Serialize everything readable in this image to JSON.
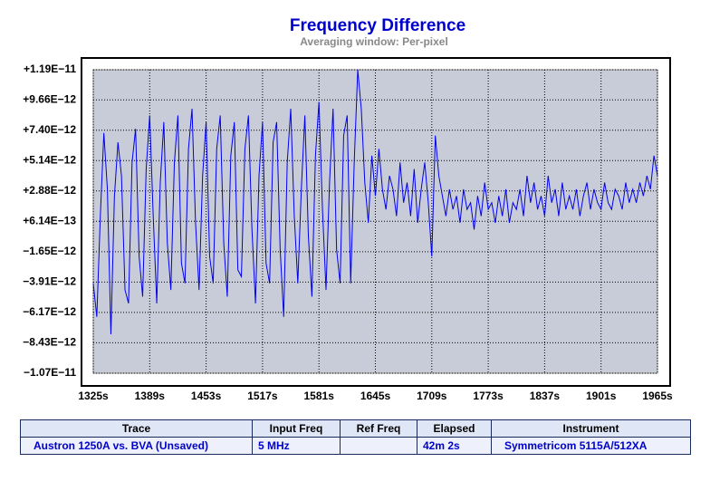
{
  "chart_data": {
    "type": "line",
    "title": "Frequency Difference",
    "subtitle": "Averaging window: Per-pixel",
    "x": [
      1325,
      1329,
      1333,
      1337,
      1341,
      1345,
      1349,
      1353,
      1357,
      1361,
      1365,
      1369,
      1373,
      1377,
      1381,
      1385,
      1389,
      1393,
      1397,
      1401,
      1405,
      1409,
      1413,
      1417,
      1421,
      1425,
      1429,
      1433,
      1437,
      1441,
      1445,
      1449,
      1453,
      1457,
      1461,
      1465,
      1469,
      1473,
      1477,
      1481,
      1485,
      1489,
      1493,
      1497,
      1501,
      1505,
      1509,
      1513,
      1517,
      1521,
      1525,
      1529,
      1533,
      1537,
      1541,
      1545,
      1549,
      1553,
      1557,
      1561,
      1565,
      1569,
      1573,
      1577,
      1581,
      1585,
      1589,
      1593,
      1597,
      1601,
      1605,
      1609,
      1613,
      1617,
      1621,
      1625,
      1629,
      1633,
      1637,
      1641,
      1645,
      1649,
      1653,
      1657,
      1661,
      1665,
      1669,
      1673,
      1677,
      1681,
      1685,
      1689,
      1693,
      1697,
      1701,
      1705,
      1709,
      1713,
      1717,
      1721,
      1725,
      1729,
      1733,
      1737,
      1741,
      1745,
      1749,
      1753,
      1757,
      1761,
      1765,
      1769,
      1773,
      1777,
      1781,
      1785,
      1789,
      1793,
      1797,
      1801,
      1805,
      1809,
      1813,
      1817,
      1821,
      1825,
      1829,
      1833,
      1837,
      1841,
      1845,
      1849,
      1853,
      1857,
      1861,
      1865,
      1869,
      1873,
      1877,
      1881,
      1885,
      1889,
      1893,
      1897,
      1901,
      1905,
      1909,
      1913,
      1917,
      1921,
      1925,
      1929,
      1933,
      1937,
      1941,
      1945,
      1949,
      1953,
      1957,
      1961,
      1965
    ],
    "series": [
      {
        "name": "Austron 1250A vs. BVA (Unsaved)",
        "color": "#0000ee",
        "values": [
          -4e-12,
          -6.5e-12,
          1e-12,
          7.2e-12,
          3e-12,
          -7.8e-12,
          2.5e-12,
          6.5e-12,
          4e-12,
          -4.5e-12,
          -5.5e-12,
          5e-12,
          7.5e-12,
          -2e-12,
          -5e-12,
          4.5e-12,
          8.5e-12,
          1e-12,
          -5.5e-12,
          3.5e-12,
          8e-12,
          -1e-12,
          -4.5e-12,
          5e-12,
          8.5e-12,
          -2.5e-12,
          -4e-12,
          6e-12,
          9e-12,
          5e-13,
          -4.5e-12,
          4e-12,
          8e-12,
          -2e-12,
          -4e-12,
          6e-12,
          8.5e-12,
          -1e-12,
          -5e-12,
          5.5e-12,
          8e-12,
          -3e-12,
          -3.5e-12,
          6e-12,
          8.5e-12,
          0,
          -5.5e-12,
          4e-12,
          8e-12,
          -2.5e-12,
          -4e-12,
          6.5e-12,
          8e-12,
          -1.5e-12,
          -6.5e-12,
          5e-12,
          9e-12,
          1e-12,
          -4e-12,
          3e-12,
          8.5e-12,
          -5e-13,
          -5e-12,
          5.5e-12,
          9.5e-12,
          1.5e-12,
          -4.5e-12,
          3.5e-12,
          9e-12,
          -1.5e-12,
          -4e-12,
          7e-12,
          8.5e-12,
          -4e-12,
          5e-12,
          1.19e-11,
          9e-12,
          3.5e-12,
          5e-13,
          5.5e-12,
          2.5e-12,
          6e-12,
          3e-12,
          1.5e-12,
          4e-12,
          3e-12,
          1e-12,
          5e-12,
          2e-12,
          3.5e-12,
          1e-12,
          4.5e-12,
          5e-13,
          3e-12,
          5e-12,
          2e-12,
          -2e-12,
          7e-12,
          4e-12,
          2.5e-12,
          1e-12,
          3e-12,
          1.5e-12,
          2.5e-12,
          5e-13,
          3e-12,
          1.5e-12,
          2e-12,
          0,
          2.5e-12,
          1e-12,
          3.5e-12,
          1.5e-12,
          2e-12,
          5e-13,
          2.5e-12,
          1e-12,
          3e-12,
          5e-13,
          2e-12,
          1.5e-12,
          3e-12,
          1e-12,
          4e-12,
          2e-12,
          3.5e-12,
          1.5e-12,
          2.5e-12,
          1e-12,
          4e-12,
          2e-12,
          3e-12,
          1e-12,
          3.5e-12,
          1.5e-12,
          2.5e-12,
          1.5e-12,
          3e-12,
          1e-12,
          2.5e-12,
          3.5e-12,
          1.5e-12,
          3e-12,
          2e-12,
          1.5e-12,
          3.5e-12,
          2e-12,
          1.5e-12,
          3e-12,
          2.5e-12,
          1.5e-12,
          3.5e-12,
          2e-12,
          3e-12,
          2e-12,
          3.5e-12,
          2.5e-12,
          4e-12,
          3e-12,
          5.5e-12,
          4e-12
        ]
      }
    ],
    "xlim": [
      1325,
      1965
    ],
    "xticks": [
      {
        "value": 1325,
        "label": "1325s"
      },
      {
        "value": 1389,
        "label": "1389s"
      },
      {
        "value": 1453,
        "label": "1453s"
      },
      {
        "value": 1517,
        "label": "1517s"
      },
      {
        "value": 1581,
        "label": "1581s"
      },
      {
        "value": 1645,
        "label": "1645s"
      },
      {
        "value": 1709,
        "label": "1709s"
      },
      {
        "value": 1773,
        "label": "1773s"
      },
      {
        "value": 1837,
        "label": "1837s"
      },
      {
        "value": 1901,
        "label": "1901s"
      },
      {
        "value": 1965,
        "label": "1965s"
      }
    ],
    "ylim": [
      -1.07e-11,
      1.19e-11
    ],
    "yticks": [
      {
        "value": 1.19e-11,
        "label": "+1.19E−11"
      },
      {
        "value": 9.66e-12,
        "label": "+9.66E−12"
      },
      {
        "value": 7.4e-12,
        "label": "+7.40E−12"
      },
      {
        "value": 5.14e-12,
        "label": "+5.14E−12"
      },
      {
        "value": 2.88e-12,
        "label": "+2.88E−12"
      },
      {
        "value": 6.14e-13,
        "label": "+6.14E−13"
      },
      {
        "value": -1.65e-12,
        "label": "−1.65E−12"
      },
      {
        "value": -3.91e-12,
        "label": "−3.91E−12"
      },
      {
        "value": -6.17e-12,
        "label": "−6.17E−12"
      },
      {
        "value": -8.43e-12,
        "label": "−8.43E−12"
      },
      {
        "value": -1.07e-11,
        "label": "−1.07E−11"
      }
    ],
    "grid": true
  },
  "table": {
    "headers": [
      "Trace",
      "Input Freq",
      "Ref Freq",
      "Elapsed",
      "Instrument"
    ],
    "rows": [
      [
        "Austron 1250A vs. BVA (Unsaved)",
        "5 MHz",
        null,
        "42m 2s",
        "Symmetricom 5115A/512XA"
      ]
    ]
  }
}
